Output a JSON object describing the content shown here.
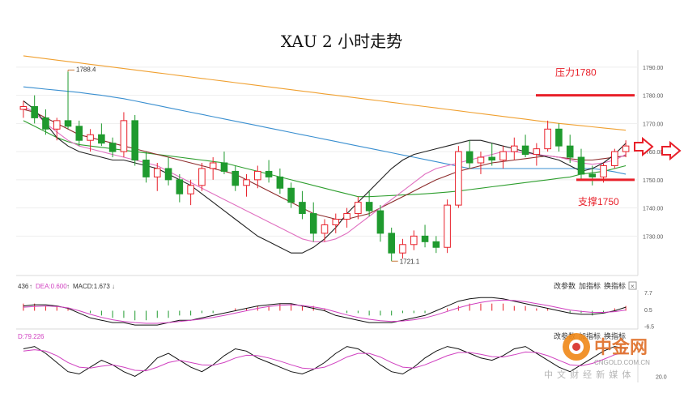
{
  "chart_data": {
    "type": "candlestick",
    "title": "XAU 2 小时走势",
    "y_ticks": [
      "1790.00",
      "1780.00",
      "1770.00",
      "1760.00",
      "1750.00",
      "1740.00",
      "1730.00"
    ],
    "ylim": [
      1716,
      1796
    ],
    "annotations": {
      "high_label": "1788.4",
      "low_label": "1721.1",
      "resistance_label": "压力1780",
      "resistance_value": 1780,
      "support_label": "支撑1750",
      "support_value": 1750,
      "colors": {
        "level": "#e8202a",
        "bull": "#e8202a",
        "bear": "#1f9a2e"
      }
    },
    "moving_averages": [
      {
        "color": "#f0a030",
        "values": [
          1794,
          1793.5,
          1793,
          1792.5,
          1792,
          1791.5,
          1791,
          1790.5,
          1790,
          1789.5,
          1789,
          1788.5,
          1788,
          1787.5,
          1787,
          1786.5,
          1786,
          1785.5,
          1785,
          1784.5,
          1784,
          1783.5,
          1783,
          1782.5,
          1782,
          1781.5,
          1781,
          1780.5,
          1780,
          1779.5,
          1779,
          1778.5,
          1778,
          1777.5,
          1777,
          1776.5,
          1776,
          1775.5,
          1775,
          1774.5,
          1774,
          1773.5,
          1773,
          1772.5,
          1772,
          1771.5,
          1771,
          1770.5,
          1770,
          1769.6,
          1769.2,
          1768.8,
          1768.4,
          1768,
          1767.6
        ]
      },
      {
        "color": "#3a8fd0",
        "values": [
          1783,
          1782.6,
          1782.2,
          1781.8,
          1781.4,
          1781,
          1780.5,
          1780,
          1779.4,
          1778.8,
          1778,
          1777.2,
          1776.4,
          1775.6,
          1774.8,
          1774,
          1773.2,
          1772.4,
          1771.6,
          1770.8,
          1770,
          1769.2,
          1768.4,
          1767.6,
          1766.8,
          1766,
          1765.2,
          1764.4,
          1763.6,
          1762.8,
          1762,
          1761.2,
          1760.4,
          1759.6,
          1758.8,
          1758,
          1757.2,
          1756.4,
          1755.6,
          1754.8,
          1754,
          1754,
          1754,
          1754,
          1754,
          1754,
          1754,
          1754,
          1754,
          1754,
          1754,
          1754,
          1753.5,
          1752.8,
          1752
        ]
      },
      {
        "color": "#2e9e2e",
        "values": [
          1771,
          1769,
          1767,
          1765,
          1763.5,
          1762.5,
          1762,
          1761.5,
          1761,
          1760.5,
          1760,
          1759.5,
          1759,
          1758.5,
          1758,
          1757.5,
          1757,
          1756.5,
          1756,
          1755,
          1754,
          1753,
          1752,
          1751,
          1750,
          1749,
          1748,
          1747,
          1746,
          1745,
          1744,
          1744,
          1744.2,
          1744.4,
          1744.6,
          1744.8,
          1745,
          1745.3,
          1745.6,
          1746,
          1746.5,
          1747,
          1747.5,
          1748,
          1748.5,
          1749,
          1749.5,
          1750,
          1750.5,
          1751,
          1752,
          1752.5,
          1753,
          1754,
          1755
        ]
      },
      {
        "color": "#8c2b2b",
        "values": [
          1775,
          1774,
          1772,
          1770,
          1768,
          1766,
          1765,
          1764,
          1763,
          1762,
          1761,
          1760,
          1759,
          1758,
          1757,
          1756,
          1755,
          1754,
          1753,
          1752,
          1750,
          1748,
          1746,
          1744,
          1742,
          1740,
          1738,
          1737,
          1736,
          1736,
          1737,
          1738,
          1740,
          1742,
          1744,
          1746,
          1748,
          1750,
          1751.5,
          1753,
          1754,
          1755,
          1756,
          1756.5,
          1757,
          1757.5,
          1758,
          1758.5,
          1758,
          1757.5,
          1757,
          1757,
          1757.5,
          1758,
          1758.5
        ]
      },
      {
        "color": "#e070c0",
        "values": [
          1776,
          1774,
          1770,
          1767,
          1764,
          1762,
          1761,
          1760,
          1759,
          1758,
          1757,
          1756,
          1755,
          1753,
          1751,
          1749,
          1747,
          1745,
          1743,
          1741,
          1739,
          1737,
          1735,
          1733,
          1731,
          1729,
          1728,
          1728,
          1729,
          1731,
          1734,
          1737,
          1740,
          1743,
          1746,
          1749,
          1752,
          1754,
          1755,
          1756,
          1757,
          1758,
          1759,
          1760,
          1760,
          1759.5,
          1759,
          1758.5,
          1758,
          1757,
          1756,
          1755.5,
          1756,
          1757,
          1759
        ]
      },
      {
        "color": "#222222",
        "values": [
          1778,
          1775,
          1770,
          1765,
          1762,
          1760,
          1759,
          1758,
          1757,
          1757,
          1756,
          1755,
          1754,
          1752,
          1750,
          1748,
          1745,
          1742,
          1739,
          1736,
          1733,
          1730,
          1728,
          1726,
          1724,
          1724,
          1726,
          1729,
          1733,
          1738,
          1742,
          1746,
          1750,
          1754,
          1757,
          1759,
          1760,
          1761,
          1762,
          1763,
          1764,
          1764,
          1763,
          1762,
          1761,
          1760,
          1759,
          1758,
          1757,
          1755,
          1753,
          1754,
          1756,
          1759,
          1763
        ]
      }
    ],
    "candles": [
      [
        1775,
        1778,
        1772,
        1776
      ],
      [
        1776,
        1780,
        1770,
        1772
      ],
      [
        1772,
        1775,
        1766,
        1768
      ],
      [
        1768,
        1772,
        1764,
        1771
      ],
      [
        1771,
        1788.4,
        1768,
        1769
      ],
      [
        1769,
        1771,
        1762,
        1764
      ],
      [
        1764,
        1768,
        1760,
        1766
      ],
      [
        1766,
        1770,
        1762,
        1763
      ],
      [
        1763,
        1765,
        1758,
        1760
      ],
      [
        1760,
        1774,
        1758,
        1771
      ],
      [
        1771,
        1773,
        1755,
        1757
      ],
      [
        1757,
        1760,
        1749,
        1751
      ],
      [
        1751,
        1756,
        1746,
        1754
      ],
      [
        1754,
        1758,
        1748,
        1750
      ],
      [
        1750,
        1752,
        1742,
        1745
      ],
      [
        1745,
        1750,
        1741,
        1748
      ],
      [
        1748,
        1756,
        1746,
        1754
      ],
      [
        1754,
        1758,
        1750,
        1756
      ],
      [
        1756,
        1760,
        1752,
        1753
      ],
      [
        1753,
        1755,
        1746,
        1748
      ],
      [
        1748,
        1752,
        1744,
        1750
      ],
      [
        1750,
        1755,
        1747,
        1753
      ],
      [
        1753,
        1757,
        1749,
        1751
      ],
      [
        1751,
        1754,
        1745,
        1747
      ],
      [
        1747,
        1749,
        1740,
        1742
      ],
      [
        1742,
        1746,
        1736,
        1738
      ],
      [
        1738,
        1742,
        1728,
        1731
      ],
      [
        1731,
        1736,
        1728,
        1734
      ],
      [
        1734,
        1738,
        1731,
        1736
      ],
      [
        1736,
        1740,
        1733,
        1738
      ],
      [
        1738,
        1744,
        1736,
        1742
      ],
      [
        1742,
        1746,
        1737,
        1739
      ],
      [
        1739,
        1741,
        1728,
        1731
      ],
      [
        1731,
        1733,
        1721.1,
        1724
      ],
      [
        1724,
        1729,
        1722,
        1727
      ],
      [
        1727,
        1732,
        1725,
        1730
      ],
      [
        1730,
        1734,
        1726,
        1728
      ],
      [
        1728,
        1730,
        1724,
        1726
      ],
      [
        1726,
        1743,
        1724,
        1741
      ],
      [
        1741,
        1762,
        1740,
        1760
      ],
      [
        1760,
        1764,
        1754,
        1756
      ],
      [
        1756,
        1760,
        1752,
        1758
      ],
      [
        1758,
        1763,
        1755,
        1757
      ],
      [
        1757,
        1762,
        1754,
        1760
      ],
      [
        1760,
        1765,
        1757,
        1762
      ],
      [
        1762,
        1766,
        1758,
        1759
      ],
      [
        1759,
        1763,
        1755,
        1761
      ],
      [
        1761,
        1771,
        1760,
        1768
      ],
      [
        1768,
        1770,
        1760,
        1762
      ],
      [
        1762,
        1766,
        1756,
        1758
      ],
      [
        1758,
        1761,
        1750,
        1752
      ],
      [
        1752,
        1755,
        1748,
        1751
      ],
      [
        1751,
        1756,
        1749,
        1755
      ],
      [
        1755,
        1761,
        1754,
        1760
      ],
      [
        1760,
        1764,
        1758,
        1762
      ]
    ],
    "macd": {
      "label_prefix": "436",
      "dea_label": "DEA:0.600",
      "macd_label": "MACD:1.673",
      "y_ticks": [
        "7.7",
        "0.5",
        "-6.5"
      ],
      "hist": [
        3,
        3,
        2,
        2,
        1,
        0,
        -1,
        -2,
        -3,
        -3,
        -4,
        -4,
        -3,
        -3,
        -2,
        -2,
        -1,
        -1,
        0,
        1,
        1,
        2,
        2,
        3,
        3,
        2,
        2,
        1,
        0,
        -1,
        -1,
        -2,
        -2,
        -2,
        -1,
        -1,
        -1,
        0,
        1,
        2,
        3,
        3,
        3,
        3,
        2,
        2,
        1,
        1,
        0,
        -1,
        -1,
        -2,
        -1,
        1,
        2
      ],
      "diff": [
        2,
        2.5,
        2.5,
        2,
        1,
        -1,
        -3,
        -4,
        -5,
        -5,
        -6,
        -6,
        -6,
        -5,
        -4,
        -4,
        -3,
        -2,
        -1,
        0,
        1,
        2,
        2.5,
        3,
        3,
        2,
        1,
        0,
        -2,
        -3,
        -4,
        -5,
        -5,
        -5,
        -4,
        -3,
        -2,
        0,
        2,
        4,
        5,
        5.5,
        5.5,
        5,
        4,
        3,
        2,
        1,
        0,
        -1,
        -1.5,
        -1.5,
        -1,
        0,
        1.5
      ],
      "dea": [
        1.5,
        1.8,
        2,
        1.8,
        1.2,
        0,
        -1.5,
        -2.8,
        -3.8,
        -4.5,
        -5,
        -5.3,
        -5.3,
        -5,
        -4.5,
        -4,
        -3.5,
        -2.8,
        -2,
        -1,
        0,
        1,
        1.8,
        2.3,
        2.5,
        2.2,
        1.6,
        0.8,
        -0.5,
        -1.8,
        -2.8,
        -3.6,
        -4.2,
        -4.5,
        -4.3,
        -3.8,
        -3,
        -1.8,
        -0.3,
        1.2,
        2.5,
        3.5,
        4.2,
        4.5,
        4.3,
        3.8,
        3,
        2.2,
        1.2,
        0.3,
        -0.3,
        -0.7,
        -0.7,
        -0.4,
        0.3
      ]
    },
    "kdj": {
      "d_label": "D:79.226",
      "y_ticks": [
        "20.0"
      ],
      "k": [
        80,
        85,
        70,
        50,
        30,
        25,
        40,
        55,
        45,
        30,
        20,
        35,
        60,
        70,
        55,
        40,
        30,
        45,
        65,
        80,
        75,
        60,
        50,
        40,
        30,
        25,
        35,
        50,
        70,
        85,
        80,
        65,
        45,
        30,
        25,
        40,
        60,
        75,
        85,
        80,
        70,
        60,
        55,
        65,
        80,
        85,
        70,
        55,
        40,
        30,
        45,
        60,
        75,
        85,
        80
      ],
      "d": [
        75,
        78,
        75,
        65,
        50,
        40,
        38,
        42,
        45,
        40,
        33,
        32,
        40,
        50,
        55,
        50,
        45,
        44,
        50,
        60,
        66,
        65,
        60,
        53,
        45,
        38,
        36,
        40,
        50,
        62,
        70,
        70,
        62,
        50,
        40,
        38,
        45,
        55,
        65,
        72,
        72,
        68,
        63,
        62,
        67,
        73,
        72,
        65,
        55,
        45,
        43,
        48,
        57,
        67,
        72
      ]
    },
    "panel_buttons": [
      "改参数",
      "加指标",
      "换指标"
    ],
    "watermark": {
      "brand": "中金网",
      "site": "CNGOLD.COM.CN",
      "subtitle": "中 文 财 经 新 媒 体"
    }
  }
}
